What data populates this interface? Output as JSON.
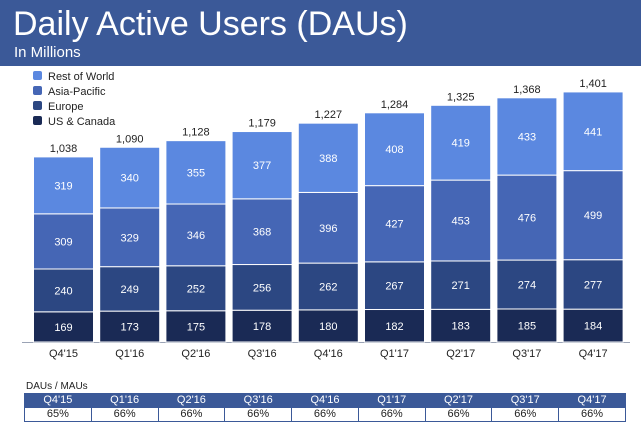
{
  "header": {
    "title": "Daily Active Users (DAUs)",
    "subtitle": "In Millions"
  },
  "colors": {
    "header_bg": "#3b5998",
    "rest_of_world": "#5b88e0",
    "asia_pacific": "#4566b5",
    "europe": "#2c4782",
    "us_canada": "#1a2a55"
  },
  "chart_data": {
    "type": "bar",
    "stacked": true,
    "categories": [
      "Q4'15",
      "Q1'16",
      "Q2'16",
      "Q3'16",
      "Q4'16",
      "Q1'17",
      "Q2'17",
      "Q3'17",
      "Q4'17"
    ],
    "series": [
      {
        "name": "US & Canada",
        "color": "#1a2a55",
        "values": [
          169,
          173,
          175,
          178,
          180,
          182,
          183,
          185,
          184
        ]
      },
      {
        "name": "Europe",
        "color": "#2c4782",
        "values": [
          240,
          249,
          252,
          256,
          262,
          267,
          271,
          274,
          277
        ]
      },
      {
        "name": "Asia-Pacific",
        "color": "#4566b5",
        "values": [
          309,
          329,
          346,
          368,
          396,
          427,
          453,
          476,
          499
        ]
      },
      {
        "name": "Rest of World",
        "color": "#5b88e0",
        "values": [
          319,
          340,
          355,
          377,
          388,
          408,
          419,
          433,
          441
        ]
      }
    ],
    "totals": [
      "1,038",
      "1,090",
      "1,128",
      "1,179",
      "1,227",
      "1,284",
      "1,325",
      "1,368",
      "1,401"
    ],
    "legend": {
      "placement": "top-left",
      "entries": [
        "Rest of World",
        "Asia-Pacific",
        "Europe",
        "US & Canada"
      ]
    },
    "ylim": [
      0,
      1450
    ],
    "grid": false
  },
  "dau_mau": {
    "label": "DAUs / MAUs",
    "quarters": [
      "Q4'15",
      "Q1'16",
      "Q2'16",
      "Q3'16",
      "Q4'16",
      "Q1'17",
      "Q2'17",
      "Q3'17",
      "Q4'17"
    ],
    "values": [
      "65%",
      "66%",
      "66%",
      "66%",
      "66%",
      "66%",
      "66%",
      "66%",
      "66%"
    ]
  }
}
